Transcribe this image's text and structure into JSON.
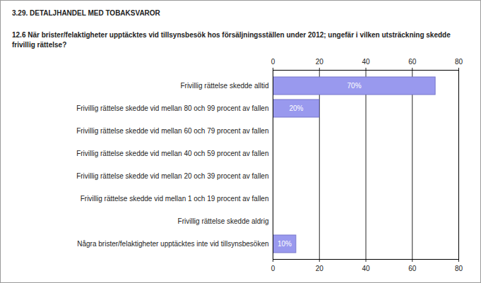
{
  "chart_data": {
    "type": "bar",
    "orientation": "horizontal",
    "title": "3.29. DETALJHANDEL MED TOBAKSVAROR",
    "subtitle": "12.6 När brister/felaktigheter upptäcktes vid tillsynsbesök hos försäljningsställen under 2012; ungefär i vilken utsträckning skedde frivillig rättelse?",
    "categories": [
      "Frivillig rättelse skedde alltid",
      "Frivillig rättelse skedde vid mellan 80 och 99 procent av fallen",
      "Frivillig rättelse skedde vid mellan 60 och 79 procent av fallen",
      "Frivillig rättelse skedde vid mellan 40 och 59 procent av fallen",
      "Frivillig rättelse skedde vid mellan 20 och 39 procent av fallen",
      "Frivillig rättelse skedde vid mellan 1 och 19 procent av fallen",
      "Frivillig rättelse skedde aldrig",
      "Några brister/felaktigheter upptäcktes inte vid tillsynsbesöken"
    ],
    "values": [
      70,
      20,
      0,
      0,
      0,
      0,
      0,
      10
    ],
    "value_labels": [
      "70%",
      "20%",
      null,
      null,
      null,
      null,
      null,
      "10%"
    ],
    "data_labels": true,
    "color": "#9999ee",
    "xlim": [
      0,
      80
    ],
    "xticks": [
      0,
      20,
      40,
      60,
      80
    ],
    "grid": true
  }
}
